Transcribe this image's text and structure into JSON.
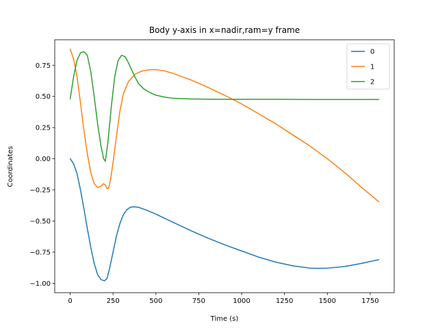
{
  "chart_data": {
    "type": "line",
    "title": "Body y-axis in x=nadir,ram=y frame",
    "xlabel": "Time (s)",
    "ylabel": "Coordinates",
    "xlim": [
      -90,
      1890
    ],
    "ylim": [
      -1.075,
      0.955
    ],
    "xticks": [
      0,
      250,
      500,
      750,
      1000,
      1250,
      1500,
      1750
    ],
    "xtick_labels": [
      "0",
      "250",
      "500",
      "750",
      "1000",
      "1250",
      "1500",
      "1750"
    ],
    "yticks": [
      -1.0,
      -0.75,
      -0.5,
      -0.25,
      0.0,
      0.25,
      0.5,
      0.75
    ],
    "ytick_labels": [
      "−1.00",
      "−0.75",
      "−0.50",
      "−0.25",
      "0.00",
      "0.25",
      "0.50",
      "0.75"
    ],
    "grid": false,
    "legend_position": "top-right",
    "series": [
      {
        "name": "0",
        "color": "#1f77b4",
        "points": [
          [
            0,
            0.0
          ],
          [
            20,
            -0.04
          ],
          [
            40,
            -0.12
          ],
          [
            60,
            -0.25
          ],
          [
            80,
            -0.4
          ],
          [
            100,
            -0.56
          ],
          [
            120,
            -0.71
          ],
          [
            140,
            -0.84
          ],
          [
            160,
            -0.93
          ],
          [
            180,
            -0.97
          ],
          [
            200,
            -0.98
          ],
          [
            215,
            -0.96
          ],
          [
            230,
            -0.88
          ],
          [
            250,
            -0.75
          ],
          [
            270,
            -0.62
          ],
          [
            290,
            -0.52
          ],
          [
            310,
            -0.45
          ],
          [
            330,
            -0.41
          ],
          [
            350,
            -0.39
          ],
          [
            370,
            -0.385
          ],
          [
            400,
            -0.39
          ],
          [
            450,
            -0.415
          ],
          [
            500,
            -0.445
          ],
          [
            600,
            -0.51
          ],
          [
            700,
            -0.575
          ],
          [
            800,
            -0.635
          ],
          [
            900,
            -0.69
          ],
          [
            1000,
            -0.74
          ],
          [
            1100,
            -0.79
          ],
          [
            1200,
            -0.83
          ],
          [
            1300,
            -0.86
          ],
          [
            1400,
            -0.878
          ],
          [
            1450,
            -0.88
          ],
          [
            1500,
            -0.878
          ],
          [
            1600,
            -0.865
          ],
          [
            1700,
            -0.84
          ],
          [
            1800,
            -0.81
          ]
        ]
      },
      {
        "name": "1",
        "color": "#ff7f0e",
        "points": [
          [
            0,
            0.88
          ],
          [
            20,
            0.8
          ],
          [
            40,
            0.66
          ],
          [
            60,
            0.45
          ],
          [
            80,
            0.23
          ],
          [
            100,
            0.04
          ],
          [
            120,
            -0.11
          ],
          [
            140,
            -0.2
          ],
          [
            160,
            -0.23
          ],
          [
            180,
            -0.22
          ],
          [
            195,
            -0.2
          ],
          [
            205,
            -0.21
          ],
          [
            215,
            -0.24
          ],
          [
            225,
            -0.235
          ],
          [
            235,
            -0.17
          ],
          [
            250,
            -0.03
          ],
          [
            270,
            0.18
          ],
          [
            290,
            0.38
          ],
          [
            310,
            0.52
          ],
          [
            340,
            0.62
          ],
          [
            380,
            0.68
          ],
          [
            420,
            0.705
          ],
          [
            470,
            0.715
          ],
          [
            500,
            0.715
          ],
          [
            550,
            0.705
          ],
          [
            600,
            0.685
          ],
          [
            700,
            0.635
          ],
          [
            800,
            0.575
          ],
          [
            900,
            0.51
          ],
          [
            1000,
            0.44
          ],
          [
            1100,
            0.36
          ],
          [
            1200,
            0.28
          ],
          [
            1300,
            0.19
          ],
          [
            1400,
            0.1
          ],
          [
            1500,
            0.0
          ],
          [
            1600,
            -0.11
          ],
          [
            1700,
            -0.23
          ],
          [
            1800,
            -0.345
          ]
        ]
      },
      {
        "name": "2",
        "color": "#2ca02c",
        "points": [
          [
            0,
            0.48
          ],
          [
            20,
            0.66
          ],
          [
            40,
            0.79
          ],
          [
            60,
            0.85
          ],
          [
            80,
            0.86
          ],
          [
            100,
            0.83
          ],
          [
            120,
            0.7
          ],
          [
            140,
            0.5
          ],
          [
            160,
            0.28
          ],
          [
            180,
            0.1
          ],
          [
            195,
            0.0
          ],
          [
            205,
            -0.02
          ],
          [
            220,
            0.13
          ],
          [
            240,
            0.42
          ],
          [
            260,
            0.66
          ],
          [
            280,
            0.79
          ],
          [
            300,
            0.83
          ],
          [
            320,
            0.82
          ],
          [
            340,
            0.77
          ],
          [
            360,
            0.71
          ],
          [
            380,
            0.65
          ],
          [
            400,
            0.6
          ],
          [
            430,
            0.56
          ],
          [
            460,
            0.535
          ],
          [
            500,
            0.51
          ],
          [
            550,
            0.495
          ],
          [
            600,
            0.485
          ],
          [
            700,
            0.48
          ],
          [
            800,
            0.478
          ],
          [
            1000,
            0.477
          ],
          [
            1200,
            0.477
          ],
          [
            1400,
            0.476
          ],
          [
            1600,
            0.476
          ],
          [
            1800,
            0.476
          ]
        ]
      }
    ]
  }
}
